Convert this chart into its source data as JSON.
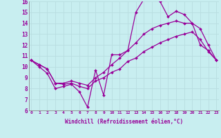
{
  "xlabel": "Windchill (Refroidissement éolien,°C)",
  "background_color": "#c8eef0",
  "line_color": "#990099",
  "grid_color": "#b8dde0",
  "xmin": 0,
  "xmax": 23,
  "ymin": 6,
  "ymax": 16,
  "x_hours": [
    0,
    1,
    2,
    3,
    4,
    5,
    6,
    7,
    8,
    9,
    10,
    11,
    12,
    13,
    14,
    15,
    16,
    17,
    18,
    19,
    20,
    21,
    22,
    23
  ],
  "line1_y": [
    10.6,
    10.0,
    9.4,
    8.0,
    8.2,
    8.4,
    7.7,
    6.3,
    9.7,
    7.4,
    11.1,
    11.1,
    11.5,
    15.0,
    16.2,
    16.5,
    16.0,
    14.6,
    15.1,
    14.8,
    14.0,
    12.0,
    11.5,
    10.6
  ],
  "line2_y": [
    10.6,
    10.2,
    9.8,
    8.5,
    8.5,
    8.7,
    8.5,
    8.3,
    9.0,
    9.5,
    10.2,
    10.8,
    11.5,
    12.2,
    13.0,
    13.5,
    13.8,
    14.0,
    14.2,
    14.0,
    14.0,
    13.5,
    12.0,
    10.6
  ],
  "line3_y": [
    10.6,
    10.2,
    9.8,
    8.5,
    8.4,
    8.5,
    8.2,
    8.0,
    8.7,
    9.0,
    9.5,
    9.8,
    10.5,
    10.8,
    11.4,
    11.8,
    12.2,
    12.5,
    12.8,
    13.0,
    13.2,
    12.5,
    11.4,
    10.6
  ]
}
